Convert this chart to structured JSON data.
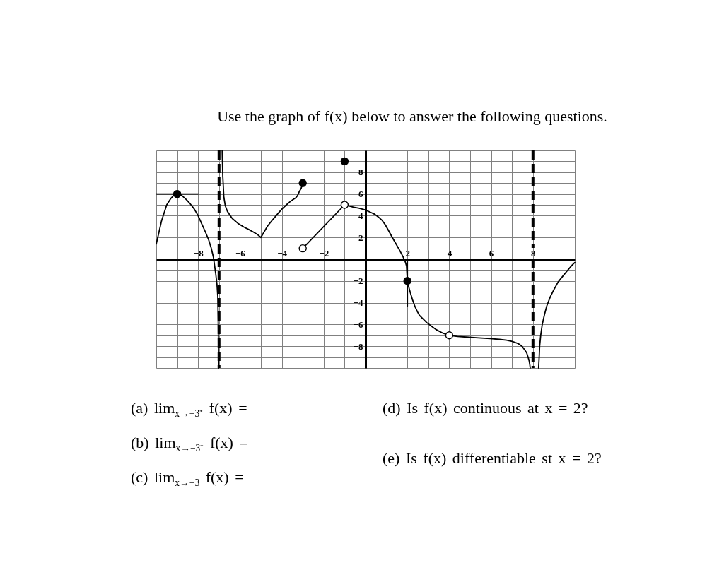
{
  "chart_data": {
    "type": "line",
    "title": "Use the graph of f(x) below to answer the following questions.",
    "annotations": [
      "(a) lim$_{x→−3⁺}$ f(x) =",
      "(b) lim$_{x→−3⁻}$ f(x) =",
      "(c) lim$_{x→−3}$ f(x) =",
      "(d) Is f(x) continuous at x = 2?",
      "(e) Is f(x) differentiable st x = 2?"
    ],
    "xlim": [
      -10,
      10
    ],
    "ylim": [
      -10,
      10
    ],
    "xticks": [
      {
        "value": -10,
        "label": null
      },
      {
        "value": -9,
        "label": null
      },
      -8,
      {
        "value": -7,
        "label": null
      },
      -6,
      {
        "value": -5,
        "label": null
      },
      -4,
      {
        "value": -3,
        "label": null
      },
      -2,
      {
        "value": -1,
        "label": null
      },
      {
        "value": 0,
        "label": null
      },
      {
        "value": 1,
        "label": null
      },
      2,
      {
        "value": 3,
        "label": null
      },
      4,
      {
        "value": 5,
        "label": null
      },
      6,
      {
        "value": 7,
        "label": null
      },
      8,
      {
        "value": 9,
        "label": null
      },
      {
        "value": 10,
        "label": null
      }
    ],
    "yticks": [
      {
        "value": -10,
        "label": null
      },
      {
        "value": -9,
        "label": null
      },
      -8,
      {
        "value": -7,
        "label": null
      },
      -6,
      {
        "value": -5,
        "label": null
      },
      -4,
      {
        "value": -3,
        "label": null
      },
      -2,
      {
        "value": -1,
        "label": null
      },
      {
        "value": 0,
        "label": null
      },
      {
        "value": 1,
        "label": null
      },
      2,
      {
        "value": 3,
        "label": null
      },
      4,
      {
        "value": 5,
        "label": null
      },
      6,
      {
        "value": 7,
        "label": null
      },
      8,
      {
        "value": 9,
        "label": null
      },
      {
        "value": 10,
        "label": null
      }
    ],
    "grid": true,
    "series": [
      {
        "color": "#000000",
        "x": [
          -10,
          -9.75,
          -9.5,
          -9.3,
          -9.15,
          -9,
          -8.8,
          -8.57,
          -8.38,
          -8.18,
          -8,
          -7.84,
          -7.65,
          -7.5,
          -7.37,
          -7.27,
          -7.16,
          -7.1,
          -7.06,
          -7.04,
          -7.02
        ],
        "values": [
          1.4,
          3.5,
          5.0,
          5.6,
          5.9,
          6,
          5.9,
          5.5,
          5.1,
          4.6,
          4.0,
          3.3,
          2.5,
          1.8,
          1.0,
          0.2,
          -1.3,
          -2.3,
          -3.4,
          -5.6,
          -10
        ]
      },
      {
        "color": "#000000",
        "x": [
          -10,
          -8
        ],
        "values": [
          6,
          6
        ]
      },
      {
        "color": "#000000",
        "x": [
          -6.85,
          -6.82,
          -6.77,
          -6.7,
          -6.6,
          -6.5,
          -6.37,
          -6.1,
          -5.81,
          -5.55,
          -5.36,
          -5.15,
          -5,
          -4.85,
          -4.68,
          -4.45,
          -4.23,
          -4,
          -3.78,
          -3.6,
          -3.45,
          -3.33,
          -3.25,
          -3.17,
          -3.08,
          -3
        ],
        "values": [
          10,
          7.6,
          5.7,
          4.9,
          4.4,
          4.1,
          3.75,
          3.3,
          2.95,
          2.7,
          2.5,
          2.25,
          2,
          2.5,
          3.05,
          3.6,
          4.1,
          4.6,
          5.0,
          5.3,
          5.5,
          5.65,
          5.85,
          6.2,
          6.5,
          7
        ]
      },
      {
        "color": "#000000",
        "x": [
          -3,
          -1
        ],
        "values": [
          1,
          5
        ]
      },
      {
        "color": "#000000",
        "x": [
          -1,
          -0.57,
          -0.3,
          0,
          0.25,
          0.44,
          0.6,
          0.78,
          0.95,
          1.11,
          1.28,
          1.45,
          1.62,
          1.79,
          1.9,
          1.96,
          2,
          2.07,
          2.13,
          2.24,
          2.35,
          2.47,
          2.58,
          2.75,
          2.92,
          3.15,
          3.37,
          3.7,
          4,
          4.4,
          4.83,
          5.4,
          5.96,
          6.4,
          6.74,
          7.05,
          7.31,
          7.48,
          7.59,
          7.7,
          7.76,
          7.82,
          7.85,
          7.87
        ],
        "values": [
          5,
          4.78,
          4.68,
          4.52,
          4.3,
          4.13,
          3.9,
          3.6,
          3.15,
          2.6,
          2.0,
          1.43,
          0.85,
          0.24,
          -0.25,
          -0.63,
          -2,
          -2.58,
          -3.0,
          -3.7,
          -4.3,
          -4.8,
          -5.17,
          -5.5,
          -5.82,
          -6.15,
          -6.47,
          -6.8,
          -7,
          -7.1,
          -7.16,
          -7.23,
          -7.3,
          -7.37,
          -7.45,
          -7.58,
          -7.77,
          -8.0,
          -8.3,
          -8.6,
          -8.96,
          -9.35,
          -9.7,
          -10
        ]
      },
      {
        "color": "#000000",
        "x": [
          2,
          2
        ],
        "values": [
          0,
          -4.3
        ]
      },
      {
        "color": "#000000",
        "x": [
          8.27,
          8.3,
          8.32,
          8.37,
          8.44,
          8.55,
          8.66,
          8.83,
          9,
          9.2,
          9.45,
          9.6,
          9.73,
          9.87,
          10
        ],
        "values": [
          -10,
          -8.9,
          -8,
          -7,
          -6.04,
          -5.1,
          -4.3,
          -3.45,
          -2.8,
          -2.1,
          -1.5,
          -1.15,
          -0.85,
          -0.55,
          -0.3
        ]
      },
      {
        "type": "scatter",
        "color": "#000000",
        "marker": "circle",
        "x": [
          -9,
          -3,
          -1,
          2
        ],
        "values": [
          6,
          7,
          9,
          -2
        ]
      },
      {
        "type": "scatter",
        "color": "#ffffff",
        "marker": "circle",
        "x": [
          -3,
          -1,
          4
        ],
        "values": [
          1,
          5,
          -7
        ]
      }
    ],
    "ref_lines": [
      {
        "axis": "x",
        "value": -7,
        "line_style": "dashed",
        "color": "#000000"
      },
      {
        "axis": "x",
        "value": 8,
        "line_style": "dashed",
        "color": "#000000"
      }
    ]
  }
}
